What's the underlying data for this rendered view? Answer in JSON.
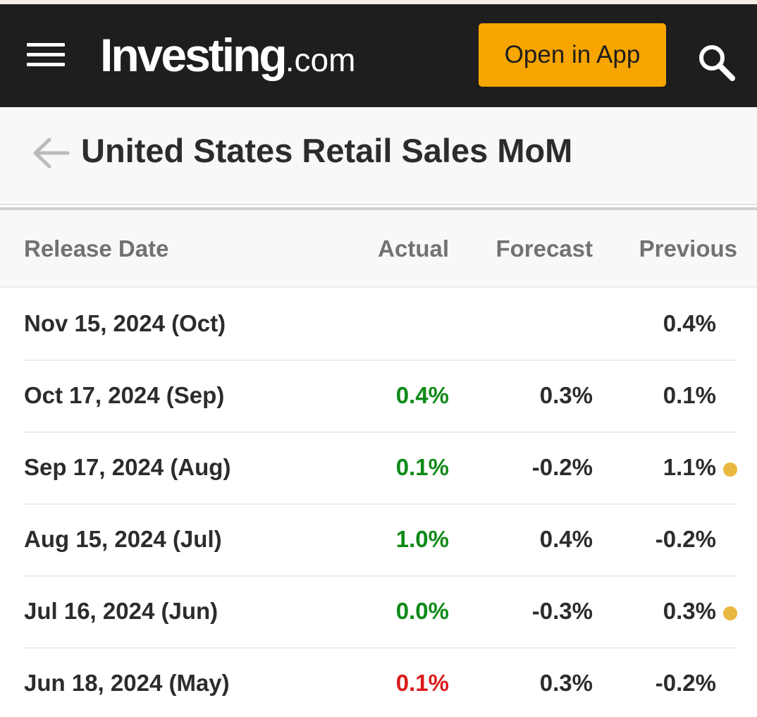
{
  "header": {
    "logo_main": "Investing",
    "logo_domain": ".com",
    "open_app_label": "Open in App"
  },
  "page": {
    "title": "United States Retail Sales MoM"
  },
  "table": {
    "columns": {
      "release_date": "Release Date",
      "actual": "Actual",
      "forecast": "Forecast",
      "previous": "Previous"
    },
    "rows": [
      {
        "date": "Nov 15, 2024 (Oct)",
        "actual": "",
        "actual_status": "none",
        "forecast": "",
        "previous": "0.4%",
        "revised": false
      },
      {
        "date": "Oct 17, 2024 (Sep)",
        "actual": "0.4%",
        "actual_status": "better",
        "forecast": "0.3%",
        "previous": "0.1%",
        "revised": false
      },
      {
        "date": "Sep 17, 2024 (Aug)",
        "actual": "0.1%",
        "actual_status": "better",
        "forecast": "-0.2%",
        "previous": "1.1%",
        "revised": true
      },
      {
        "date": "Aug 15, 2024 (Jul)",
        "actual": "1.0%",
        "actual_status": "better",
        "forecast": "0.4%",
        "previous": "-0.2%",
        "revised": false
      },
      {
        "date": "Jul 16, 2024 (Jun)",
        "actual": "0.0%",
        "actual_status": "better",
        "forecast": "-0.3%",
        "previous": "0.3%",
        "revised": true
      },
      {
        "date": "Jun 18, 2024 (May)",
        "actual": "0.1%",
        "actual_status": "worse",
        "forecast": "0.3%",
        "previous": "-0.2%",
        "revised": false
      }
    ]
  },
  "colors": {
    "header_bg": "#1e1e1e",
    "accent": "#f7a500",
    "better": "#0e8a16",
    "worse": "#d91a1a",
    "revised_dot": "#eab840"
  },
  "icons": {
    "menu": "hamburger-icon",
    "search": "search-icon",
    "back": "back-arrow-icon",
    "revised": "revised-dot-icon"
  }
}
